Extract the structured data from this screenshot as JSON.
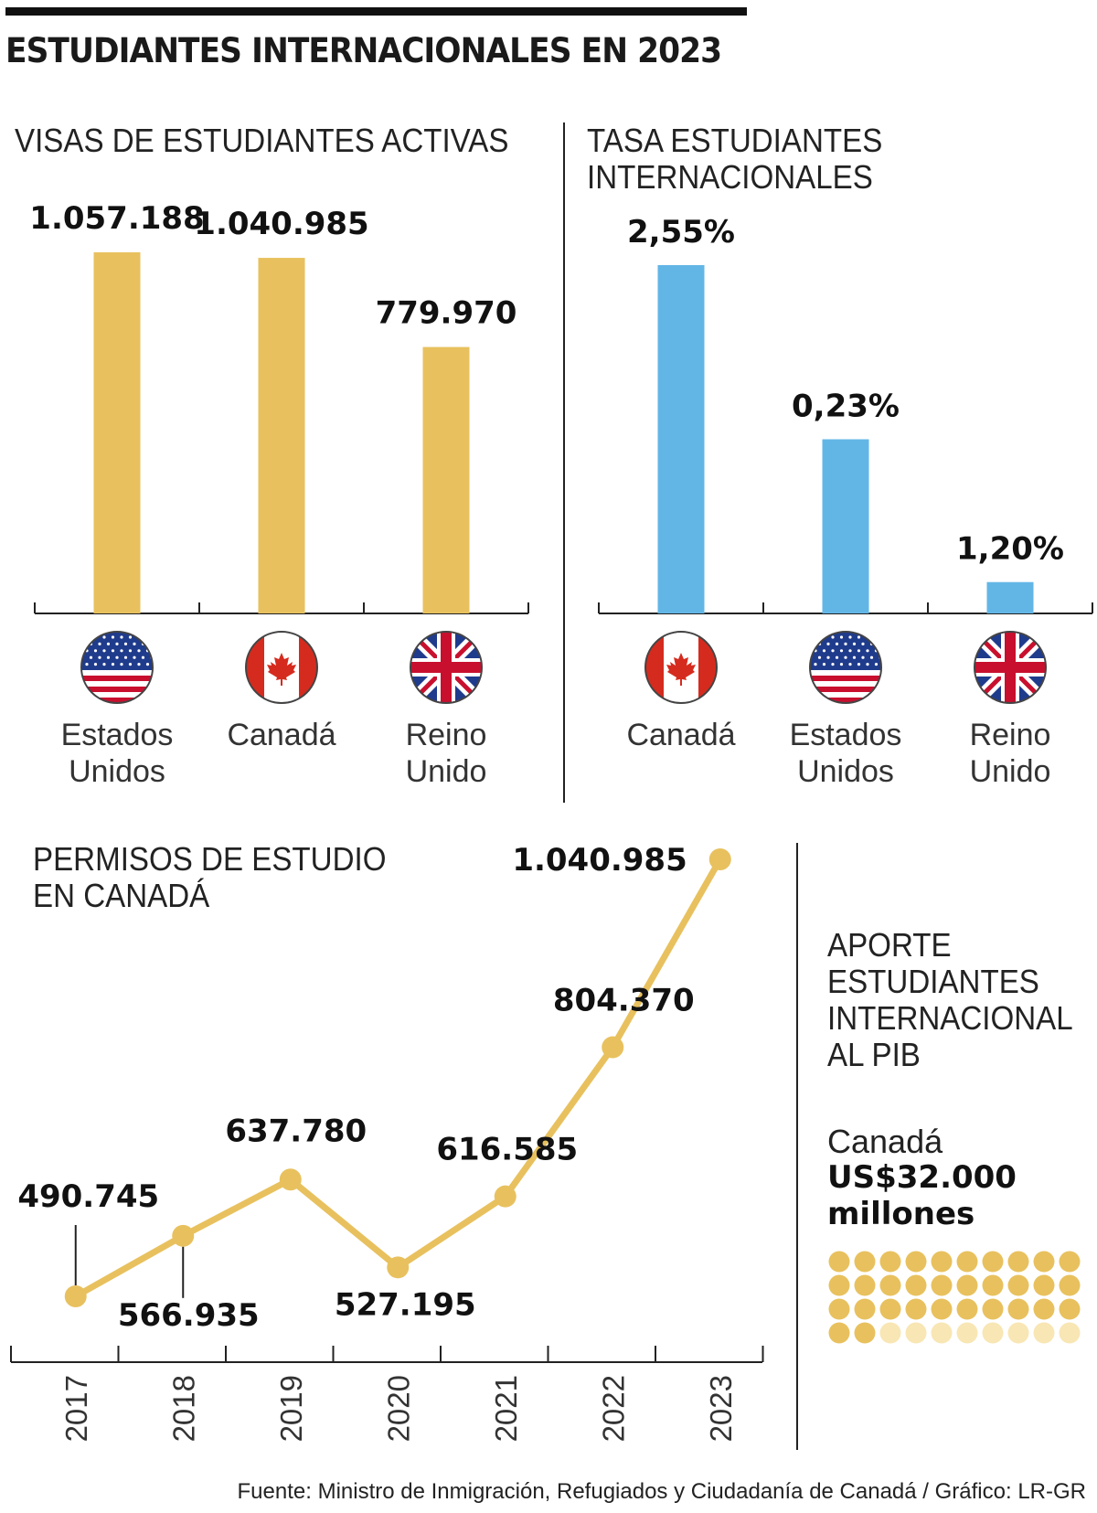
{
  "title": "ESTUDIANTES INTERNACIONALES EN 2023",
  "colors": {
    "gold": "#e8c15e",
    "gold_light": "#f8e6b4",
    "blue": "#62b6e6",
    "line": "#222222"
  },
  "icons": {
    "usa": "usa-flag-icon",
    "canada": "canada-flag-icon",
    "uk": "uk-flag-icon"
  },
  "chart_data": [
    {
      "type": "bar",
      "title": "VISAS DE ESTUDIANTES ACTIVAS",
      "categories": [
        "Estados Unidos",
        "Canadá",
        "Reino Unido"
      ],
      "category_lines": [
        [
          "Estados",
          "Unidos"
        ],
        [
          "Canadá"
        ],
        [
          "Reino",
          "Unido"
        ]
      ],
      "flags": [
        "usa",
        "canada",
        "uk"
      ],
      "values": [
        1057188,
        1040985,
        779970
      ],
      "labels": [
        "1.057.188",
        "1.040.985",
        "779.970"
      ],
      "ylim": [
        0,
        1057188
      ],
      "color": "#e8c15e"
    },
    {
      "type": "bar",
      "title": "TASA ESTUDIANTES INTERNACIONALES",
      "title_lines": [
        "TASA ESTUDIANTES",
        "INTERNACIONALES"
      ],
      "categories": [
        "Canadá",
        "Estados Unidos",
        "Reino Unido"
      ],
      "category_lines": [
        [
          "Canadá"
        ],
        [
          "Estados",
          "Unidos"
        ],
        [
          "Reino",
          "Unido"
        ]
      ],
      "flags": [
        "canada",
        "usa",
        "uk"
      ],
      "values": [
        2.55,
        0.23,
        1.2
      ],
      "labels": [
        "2,55%",
        "0,23%",
        "1,20%"
      ],
      "color": "#62b6e6"
    },
    {
      "type": "line",
      "title": "PERMISOS DE ESTUDIO EN CANADÁ",
      "title_lines": [
        "PERMISOS DE ESTUDIO",
        "EN CANADÁ"
      ],
      "x": [
        "2017",
        "2018",
        "2019",
        "2020",
        "2021",
        "2022",
        "2023"
      ],
      "values": [
        490745,
        566935,
        637780,
        527195,
        616585,
        804370,
        1040985
      ],
      "labels": [
        "490.745",
        "566.935",
        "637.780",
        "527.195",
        "616.585",
        "804.370",
        "1.040.985"
      ],
      "color": "#e8c15e"
    },
    {
      "type": "waffle",
      "title": "APORTE ESTUDIANTES INTERNACIONAL AL PIB",
      "title_lines": [
        "APORTE",
        "ESTUDIANTES",
        "INTERNACIONAL",
        "AL PIB"
      ],
      "country": "Canadá",
      "amount": "US$32.000 millones",
      "amount_lines": [
        "US$32.000",
        "millones"
      ],
      "filled": 32,
      "total": 40
    }
  ],
  "source": "Fuente: Ministro de Inmigración, Refugiados y Ciudadanía de Canadá / Gráfico: LR-GR"
}
